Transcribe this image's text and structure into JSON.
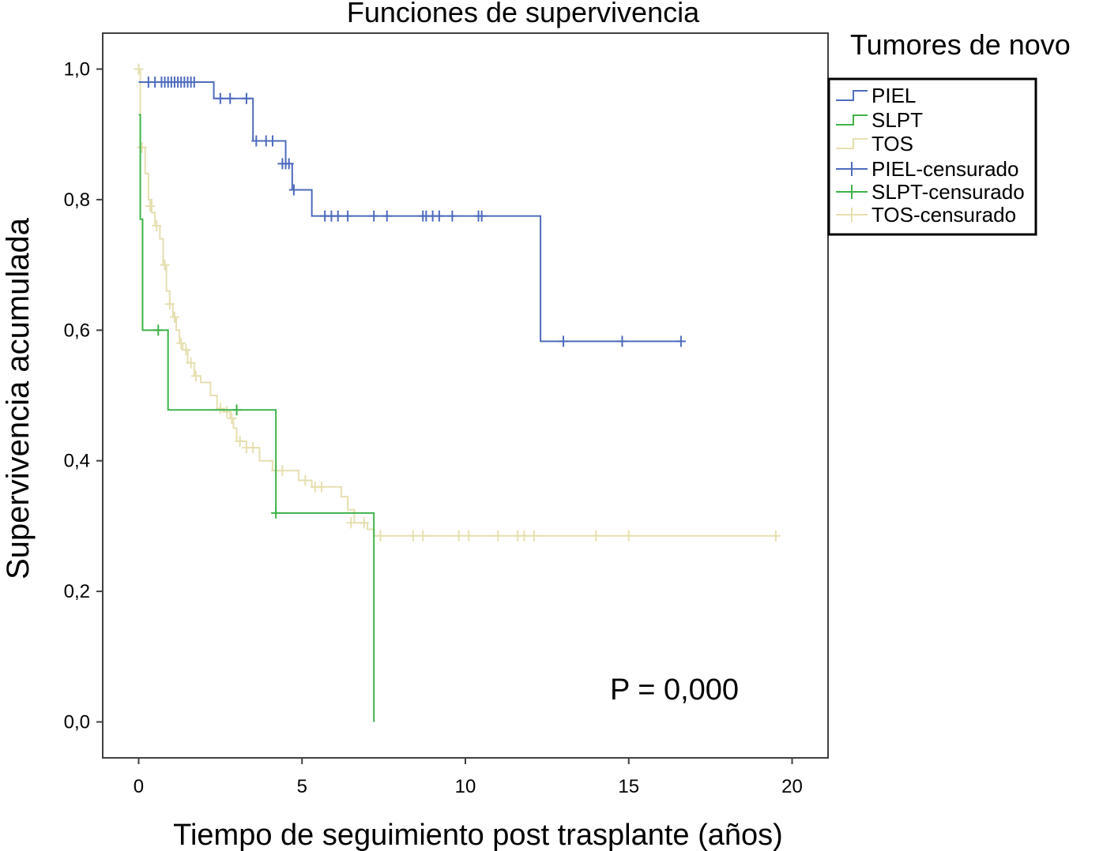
{
  "chart_data": {
    "type": "line",
    "subtype": "kaplan-meier",
    "title": "Funciones de supervivencia",
    "xlabel": "Tiempo de seguimiento post trasplante (años)",
    "ylabel": "Supervivencia acumulada",
    "xlim": [
      -1.1,
      21.1
    ],
    "ylim": [
      -0.055,
      1.055
    ],
    "xticks": [
      0,
      5,
      10,
      15,
      20
    ],
    "xtick_labels": [
      "0",
      "5",
      "10",
      "15",
      "20"
    ],
    "yticks": [
      0.0,
      0.2,
      0.4,
      0.6,
      0.8,
      1.0
    ],
    "ytick_labels": [
      "0,0",
      "0,2",
      "0,4",
      "0,6",
      "0,8",
      "1,0"
    ],
    "grid": false,
    "legend_title": "Tumores de novo",
    "legend_placement": "outside-right",
    "legend_entries": [
      "PIEL",
      "SLPT",
      "TOS",
      "PIEL-censurado",
      "SLPT-censurado",
      "TOS-censurado"
    ],
    "annotation": "P = 0,000",
    "series": [
      {
        "name": "PIEL",
        "color": "#4e6bbd",
        "steps": [
          [
            0,
            0.98
          ],
          [
            2.3,
            0.955
          ],
          [
            3.5,
            0.89
          ],
          [
            4.5,
            0.855
          ],
          [
            4.7,
            0.815
          ],
          [
            5.3,
            0.775
          ],
          [
            12.3,
            0.583
          ],
          [
            16.6,
            0.583
          ]
        ],
        "censored": [
          [
            0.3,
            0.98
          ],
          [
            0.5,
            0.98
          ],
          [
            0.7,
            0.98
          ],
          [
            0.8,
            0.98
          ],
          [
            0.9,
            0.98
          ],
          [
            1.0,
            0.98
          ],
          [
            1.1,
            0.98
          ],
          [
            1.2,
            0.98
          ],
          [
            1.3,
            0.98
          ],
          [
            1.4,
            0.98
          ],
          [
            1.5,
            0.98
          ],
          [
            1.6,
            0.98
          ],
          [
            1.7,
            0.98
          ],
          [
            2.5,
            0.955
          ],
          [
            2.8,
            0.955
          ],
          [
            3.3,
            0.955
          ],
          [
            3.6,
            0.89
          ],
          [
            3.9,
            0.89
          ],
          [
            4.1,
            0.89
          ],
          [
            4.4,
            0.855
          ],
          [
            4.5,
            0.855
          ],
          [
            4.6,
            0.855
          ],
          [
            4.75,
            0.815
          ],
          [
            5.7,
            0.775
          ],
          [
            5.9,
            0.775
          ],
          [
            6.1,
            0.775
          ],
          [
            6.4,
            0.775
          ],
          [
            7.2,
            0.775
          ],
          [
            7.6,
            0.775
          ],
          [
            8.7,
            0.775
          ],
          [
            8.8,
            0.775
          ],
          [
            9.0,
            0.775
          ],
          [
            9.2,
            0.775
          ],
          [
            9.6,
            0.775
          ],
          [
            10.4,
            0.775
          ],
          [
            10.5,
            0.775
          ],
          [
            13.0,
            0.583
          ],
          [
            14.8,
            0.583
          ],
          [
            16.6,
            0.583
          ]
        ]
      },
      {
        "name": "SLPT",
        "color": "#3fb34a",
        "steps": [
          [
            0,
            0.93
          ],
          [
            0.05,
            0.77
          ],
          [
            0.12,
            0.6
          ],
          [
            0.9,
            0.478
          ],
          [
            4.2,
            0.32
          ],
          [
            7.2,
            0.0
          ]
        ],
        "censored": [
          [
            0.6,
            0.6
          ],
          [
            3.0,
            0.478
          ],
          [
            4.2,
            0.32
          ]
        ]
      },
      {
        "name": "TOS",
        "color": "#e6dfb0",
        "steps": [
          [
            0,
            1.0
          ],
          [
            0.05,
            0.88
          ],
          [
            0.2,
            0.84
          ],
          [
            0.3,
            0.8
          ],
          [
            0.4,
            0.78
          ],
          [
            0.5,
            0.76
          ],
          [
            0.65,
            0.74
          ],
          [
            0.75,
            0.7
          ],
          [
            0.85,
            0.66
          ],
          [
            0.95,
            0.64
          ],
          [
            1.05,
            0.62
          ],
          [
            1.15,
            0.6
          ],
          [
            1.25,
            0.58
          ],
          [
            1.35,
            0.57
          ],
          [
            1.5,
            0.55
          ],
          [
            1.7,
            0.53
          ],
          [
            1.9,
            0.52
          ],
          [
            2.2,
            0.5
          ],
          [
            2.4,
            0.48
          ],
          [
            2.6,
            0.475
          ],
          [
            2.8,
            0.465
          ],
          [
            2.9,
            0.45
          ],
          [
            3.0,
            0.43
          ],
          [
            3.3,
            0.42
          ],
          [
            3.7,
            0.4
          ],
          [
            4.1,
            0.385
          ],
          [
            4.9,
            0.37
          ],
          [
            5.3,
            0.36
          ],
          [
            6.2,
            0.345
          ],
          [
            6.4,
            0.325
          ],
          [
            6.6,
            0.305
          ],
          [
            7.0,
            0.295
          ],
          [
            7.2,
            0.285
          ],
          [
            19.5,
            0.285
          ]
        ],
        "censored": [
          [
            0,
            1.0
          ],
          [
            0.1,
            0.88
          ],
          [
            0.35,
            0.79
          ],
          [
            0.55,
            0.76
          ],
          [
            0.8,
            0.7
          ],
          [
            0.95,
            0.64
          ],
          [
            1.1,
            0.62
          ],
          [
            1.3,
            0.58
          ],
          [
            1.45,
            0.57
          ],
          [
            1.6,
            0.55
          ],
          [
            1.75,
            0.53
          ],
          [
            2.5,
            0.48
          ],
          [
            2.7,
            0.475
          ],
          [
            2.85,
            0.465
          ],
          [
            3.1,
            0.43
          ],
          [
            3.3,
            0.42
          ],
          [
            3.5,
            0.42
          ],
          [
            4.2,
            0.385
          ],
          [
            4.4,
            0.385
          ],
          [
            5.1,
            0.37
          ],
          [
            5.4,
            0.36
          ],
          [
            5.6,
            0.36
          ],
          [
            6.5,
            0.305
          ],
          [
            6.9,
            0.305
          ],
          [
            7.4,
            0.285
          ],
          [
            8.4,
            0.285
          ],
          [
            8.7,
            0.285
          ],
          [
            9.8,
            0.285
          ],
          [
            10.1,
            0.285
          ],
          [
            11.0,
            0.285
          ],
          [
            11.6,
            0.285
          ],
          [
            11.8,
            0.285
          ],
          [
            12.1,
            0.285
          ],
          [
            14.0,
            0.285
          ],
          [
            15.0,
            0.285
          ],
          [
            19.5,
            0.285
          ]
        ]
      }
    ]
  }
}
